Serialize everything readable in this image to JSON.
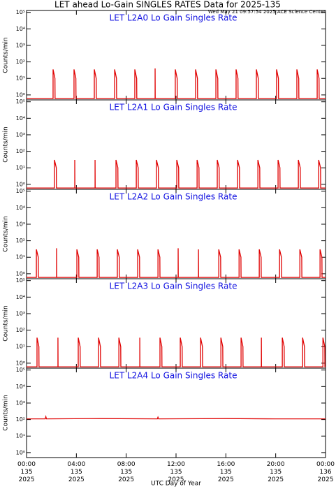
{
  "title": "LET ahead Lo-Gain SINGLES RATES Data for 2025-135",
  "timestamp": "Wed May 21 09:57:54 2025 ACE Science Center",
  "xlabel": "UTC Day of Year",
  "chart_data": [
    {
      "type": "line",
      "title": "LET L2A0 Lo Gain Singles Rate",
      "ylabel": "Counts/min",
      "log_y": true,
      "xlim": [
        0,
        24
      ],
      "xticks": [
        0,
        4,
        8,
        12,
        16,
        20,
        24
      ],
      "ylim": [
        0.5,
        130000
      ],
      "yticks": [
        {
          "value": 1,
          "label": "10⁰"
        },
        {
          "value": 10,
          "label": "10¹"
        },
        {
          "value": 100,
          "label": "10²"
        },
        {
          "value": 1000,
          "label": "10³"
        },
        {
          "value": 10000,
          "label": "10⁴"
        },
        {
          "value": 100000,
          "label": "10⁵"
        }
      ],
      "series": [
        {
          "color": "#e00000",
          "x": [
            0,
            2.13,
            2.13,
            2.28,
            2.29,
            3.81,
            3.81,
            3.96,
            3.97,
            5.44,
            5.44,
            5.59,
            5.6,
            7.07,
            7.07,
            7.22,
            7.23,
            8.69,
            8.69,
            8.84,
            8.85,
            10.32,
            10.32,
            10.33,
            10.34,
            11.94,
            11.94,
            12.09,
            12.1,
            13.57,
            13.57,
            13.72,
            13.73,
            15.2,
            15.2,
            15.35,
            15.36,
            16.82,
            16.82,
            16.97,
            16.98,
            18.45,
            18.45,
            18.6,
            18.61,
            20.07,
            20.07,
            20.22,
            20.23,
            21.7,
            21.7,
            21.85,
            21.86,
            23.33,
            23.33,
            23.48,
            23.49,
            24
          ],
          "values": [
            0.6,
            0.6,
            35,
            10,
            0.6,
            0.6,
            35,
            10,
            0.6,
            0.6,
            35,
            10,
            0.6,
            0.6,
            35,
            10,
            0.6,
            0.6,
            35,
            10,
            0.6,
            0.6,
            40,
            0.6,
            0.6,
            0.6,
            35,
            10,
            0.6,
            0.6,
            35,
            10,
            0.6,
            0.6,
            35,
            10,
            0.6,
            0.6,
            35,
            10,
            0.6,
            0.6,
            35,
            10,
            0.6,
            0.6,
            35,
            10,
            0.6,
            0.6,
            35,
            10,
            0.6,
            0.6,
            35,
            10,
            0.6,
            0.6
          ]
        }
      ]
    },
    {
      "type": "line",
      "title": "LET L2A1 Lo Gain Singles Rate",
      "ylabel": "Counts/min",
      "log_y": true,
      "xlim": [
        0,
        24
      ],
      "xticks": [
        0,
        4,
        8,
        12,
        16,
        20,
        24
      ],
      "ylim": [
        0.5,
        130000
      ],
      "yticks": [
        {
          "value": 1,
          "label": "10⁰"
        },
        {
          "value": 10,
          "label": "10¹"
        },
        {
          "value": 100,
          "label": "10²"
        },
        {
          "value": 1000,
          "label": "10³"
        },
        {
          "value": 10000,
          "label": "10⁴"
        },
        {
          "value": 100000,
          "label": "10⁵"
        }
      ],
      "series": [
        {
          "color": "#e00000",
          "x": [
            0,
            2.24,
            2.24,
            2.39,
            2.4,
            3.87,
            3.87,
            3.88,
            3.89,
            5.5,
            5.5,
            5.51,
            5.52,
            7.18,
            7.18,
            7.33,
            7.34,
            8.81,
            8.81,
            8.96,
            8.97,
            10.43,
            10.43,
            10.58,
            10.59,
            12.06,
            12.06,
            12.21,
            12.22,
            13.69,
            13.69,
            13.84,
            13.85,
            15.31,
            15.31,
            15.46,
            15.47,
            16.94,
            16.94,
            17.09,
            17.1,
            18.57,
            18.57,
            18.72,
            18.73,
            20.19,
            20.19,
            20.34,
            20.35,
            21.82,
            21.82,
            21.97,
            21.98,
            23.45,
            23.45,
            23.6,
            23.61,
            24
          ],
          "values": [
            0.6,
            0.6,
            30,
            10,
            0.6,
            0.6,
            30,
            0.6,
            0.6,
            0.6,
            30,
            0.6,
            0.6,
            0.6,
            30,
            10,
            0.6,
            0.6,
            30,
            10,
            0.6,
            0.6,
            30,
            10,
            0.6,
            0.6,
            30,
            10,
            0.6,
            0.6,
            30,
            10,
            0.6,
            0.6,
            30,
            10,
            0.6,
            0.6,
            30,
            10,
            0.6,
            0.6,
            30,
            10,
            0.6,
            0.6,
            30,
            10,
            0.6,
            0.6,
            30,
            10,
            0.6,
            0.6,
            30,
            10,
            0.6,
            0.6
          ]
        }
      ]
    },
    {
      "type": "line",
      "title": "LET L2A2 Lo Gain Singles Rate",
      "ylabel": "Counts/min",
      "log_y": true,
      "xlim": [
        0,
        24
      ],
      "xticks": [
        0,
        4,
        8,
        12,
        16,
        20,
        24
      ],
      "ylim": [
        0.5,
        130000
      ],
      "yticks": [
        {
          "value": 1,
          "label": "10⁰"
        },
        {
          "value": 10,
          "label": "10¹"
        },
        {
          "value": 100,
          "label": "10²"
        },
        {
          "value": 1000,
          "label": "10³"
        },
        {
          "value": 10000,
          "label": "10⁴"
        },
        {
          "value": 100000,
          "label": "10⁵"
        }
      ],
      "series": [
        {
          "color": "#e00000",
          "x": [
            0,
            0.79,
            0.79,
            0.94,
            0.95,
            2.41,
            2.41,
            2.42,
            2.43,
            4.04,
            4.04,
            4.19,
            4.2,
            5.67,
            5.67,
            5.82,
            5.83,
            7.29,
            7.29,
            7.44,
            7.45,
            8.92,
            8.92,
            9.07,
            9.08,
            10.55,
            10.55,
            10.7,
            10.71,
            12.17,
            12.17,
            12.18,
            12.19,
            13.8,
            13.8,
            13.81,
            13.82,
            15.43,
            15.43,
            15.58,
            15.59,
            17.06,
            17.06,
            17.21,
            17.22,
            18.68,
            18.68,
            18.83,
            18.84,
            20.31,
            20.31,
            20.46,
            20.47,
            21.94,
            21.94,
            22.09,
            22.1,
            23.56,
            23.56,
            23.71,
            23.72,
            24
          ],
          "values": [
            0.6,
            0.6,
            30,
            10,
            0.6,
            0.6,
            35,
            0.6,
            0.6,
            0.6,
            30,
            10,
            0.6,
            0.6,
            30,
            10,
            0.6,
            0.6,
            30,
            10,
            0.6,
            0.6,
            30,
            10,
            0.6,
            0.6,
            30,
            10,
            0.6,
            0.6,
            35,
            0.6,
            0.6,
            0.6,
            30,
            0.6,
            0.6,
            0.6,
            30,
            10,
            0.6,
            0.6,
            30,
            10,
            0.6,
            0.6,
            30,
            10,
            0.6,
            0.6,
            30,
            10,
            0.6,
            0.6,
            30,
            10,
            0.6,
            0.6,
            30,
            10,
            0.6,
            0.6
          ]
        }
      ]
    },
    {
      "type": "line",
      "title": "LET L2A3 Lo Gain Singles Rate",
      "ylabel": "Counts/min",
      "log_y": true,
      "xlim": [
        0,
        24
      ],
      "xticks": [
        0,
        4,
        8,
        12,
        16,
        20,
        24
      ],
      "ylim": [
        0.5,
        130000
      ],
      "yticks": [
        {
          "value": 1,
          "label": "10⁰"
        },
        {
          "value": 10,
          "label": "10¹"
        },
        {
          "value": 100,
          "label": "10²"
        },
        {
          "value": 1000,
          "label": "10³"
        },
        {
          "value": 10000,
          "label": "10⁴"
        },
        {
          "value": 100000,
          "label": "10⁵"
        }
      ],
      "series": [
        {
          "color": "#e00000",
          "x": [
            0,
            0.84,
            0.84,
            0.99,
            1,
            2.52,
            2.52,
            2.53,
            2.54,
            4.15,
            4.15,
            4.3,
            4.31,
            5.78,
            5.78,
            5.93,
            5.94,
            7.41,
            7.41,
            7.56,
            7.57,
            9.09,
            9.09,
            9.1,
            9.11,
            10.71,
            10.71,
            10.86,
            10.87,
            12.34,
            12.34,
            12.49,
            12.5,
            13.97,
            13.97,
            14.12,
            14.13,
            15.6,
            15.6,
            15.75,
            15.76,
            17.22,
            17.22,
            17.37,
            17.38,
            18.85,
            18.85,
            18.86,
            18.87,
            20.53,
            20.53,
            20.68,
            20.69,
            22.16,
            22.16,
            22.31,
            22.32,
            23.79,
            23.79,
            23.94,
            23.95,
            24
          ],
          "values": [
            0.6,
            0.6,
            35,
            10,
            0.6,
            0.6,
            35,
            0.6,
            0.6,
            0.6,
            35,
            10,
            0.6,
            0.6,
            35,
            10,
            0.6,
            0.6,
            35,
            10,
            0.6,
            0.6,
            35,
            0.6,
            0.6,
            0.6,
            35,
            10,
            0.6,
            0.6,
            35,
            10,
            0.6,
            0.6,
            35,
            10,
            0.6,
            0.6,
            35,
            10,
            0.6,
            0.6,
            35,
            10,
            0.6,
            0.6,
            35,
            0.6,
            0.6,
            0.6,
            35,
            10,
            0.6,
            0.6,
            35,
            10,
            0.6,
            0.6,
            35,
            10,
            0.6,
            0.6
          ]
        }
      ]
    },
    {
      "type": "line",
      "title": "LET L2A4 Lo Gain Singles Rate",
      "ylabel": "Counts/min",
      "log_y": true,
      "xlim": [
        0,
        24
      ],
      "xticks": [
        {
          "value": 0,
          "label": "00:00\n135\n2025"
        },
        {
          "value": 4,
          "label": "04:00\n135\n2025"
        },
        {
          "value": 8,
          "label": "08:00\n135\n2025"
        },
        {
          "value": 12,
          "label": "12:00\n135\n2025"
        },
        {
          "value": 16,
          "label": "16:00\n135\n2025"
        },
        {
          "value": 20,
          "label": "20:00\n135\n2025"
        },
        {
          "value": 24,
          "label": "00:00\n136\n2025"
        }
      ],
      "ylim": [
        0.5,
        130000
      ],
      "yticks": [
        {
          "value": 1,
          "label": "10⁰"
        },
        {
          "value": 10,
          "label": "10¹"
        },
        {
          "value": 100,
          "label": "10²"
        },
        {
          "value": 1000,
          "label": "10³"
        },
        {
          "value": 10000,
          "label": "10⁴"
        },
        {
          "value": 100000,
          "label": "10⁵"
        }
      ],
      "series": [
        {
          "color": "#e00000",
          "x": [
            0,
            1.5,
            1.55,
            1.6,
            6,
            10.5,
            10.55,
            10.6,
            16,
            20,
            24
          ],
          "values": [
            110,
            110,
            150,
            110,
            115,
            110,
            140,
            110,
            115,
            110,
            110
          ]
        }
      ]
    }
  ]
}
